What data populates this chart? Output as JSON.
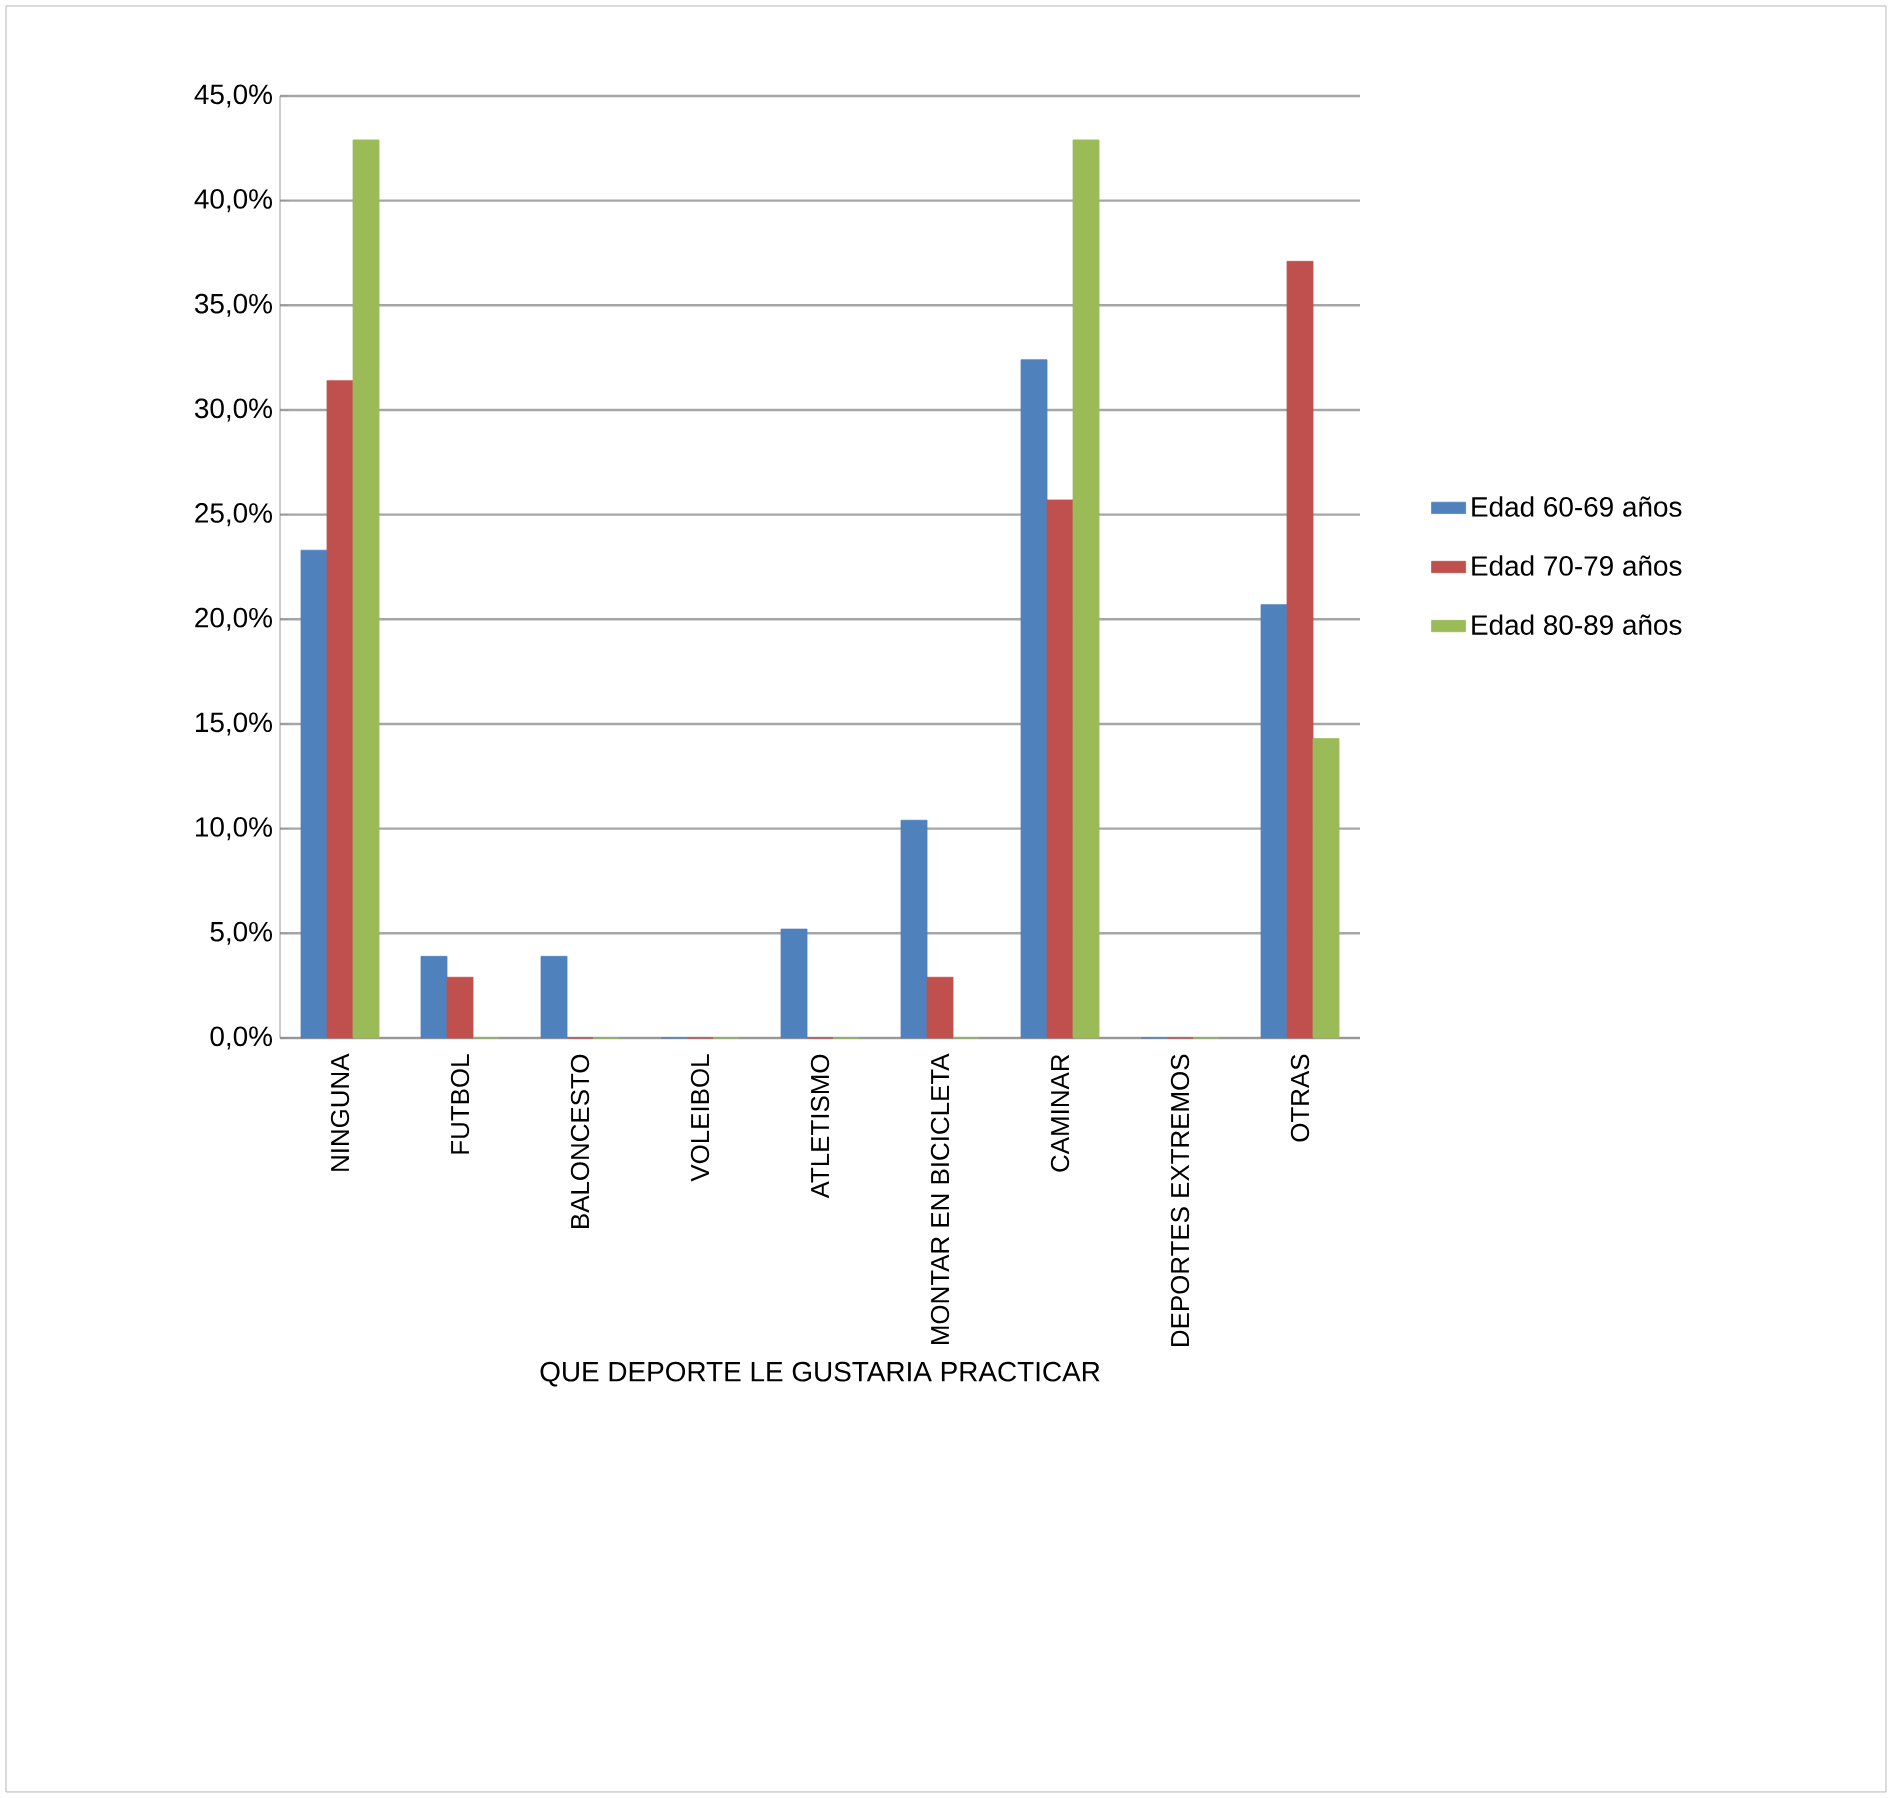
{
  "chart_data": {
    "type": "bar",
    "xlabel": "QUE DEPORTE LE GUSTARIA PRACTICAR",
    "categories": [
      "NINGUNA",
      "FUTBOL",
      "BALONCESTO",
      "VOLEIBOL",
      "ATLETISMO",
      "MONTAR EN BICICLETA",
      "CAMINAR",
      "DEPORTES EXTREMOS",
      "OTRAS"
    ],
    "series": [
      {
        "name": "Edad 60-69 años",
        "color": "#4f81bd",
        "values": [
          23.3,
          3.9,
          3.9,
          0,
          5.2,
          10.4,
          32.4,
          0,
          20.7
        ]
      },
      {
        "name": "Edad 70-79 años",
        "color": "#c0504d",
        "values": [
          31.4,
          2.9,
          0,
          0,
          0,
          2.9,
          25.7,
          0,
          37.1
        ]
      },
      {
        "name": "Edad 80-89 años",
        "color": "#9bbb59",
        "values": [
          42.9,
          0,
          0,
          0,
          0,
          0,
          42.9,
          0,
          14.3
        ]
      }
    ],
    "ylim": [
      0,
      45
    ],
    "yticks": [
      {
        "value": 0,
        "label": "0,0%"
      },
      {
        "value": 5,
        "label": "5,0%"
      },
      {
        "value": 10,
        "label": "10,0%"
      },
      {
        "value": 15,
        "label": "15,0%"
      },
      {
        "value": 20,
        "label": "20,0%"
      },
      {
        "value": 25,
        "label": "25,0%"
      },
      {
        "value": 30,
        "label": "30,0%"
      },
      {
        "value": 35,
        "label": "35,0%"
      },
      {
        "value": 40,
        "label": "40,0%"
      },
      {
        "value": 45,
        "label": "45,0%"
      }
    ],
    "grid": "y",
    "legend": "right"
  }
}
